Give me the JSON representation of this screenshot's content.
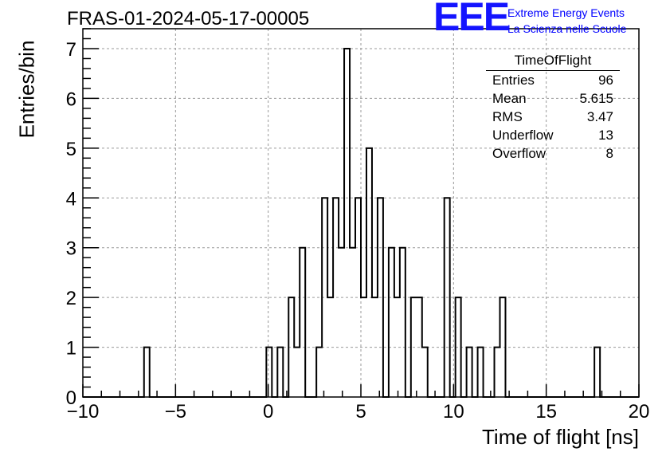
{
  "page_title": "FRAS-01-2024-05-17-00005",
  "logo": {
    "mark": "EEE",
    "line1": "Extreme Energy Events",
    "line2": "La Scienza nelle Scuole",
    "color": "#1414ff"
  },
  "stats": {
    "title": "TimeOfFlight",
    "rows": [
      {
        "label": "Entries",
        "value": "96"
      },
      {
        "label": "Mean",
        "value": "5.615"
      },
      {
        "label": "RMS",
        "value": "3.47"
      },
      {
        "label": "Underflow",
        "value": "13"
      },
      {
        "label": "Overflow",
        "value": "8"
      }
    ]
  },
  "chart_data": {
    "type": "bar",
    "histogram": true,
    "title": "",
    "xlabel": "Time of flight [ns]",
    "ylabel": "Entries/bin",
    "xlim": [
      -10,
      20
    ],
    "ylim": [
      0,
      7.4
    ],
    "bin_width": 0.3,
    "grid": true,
    "line_color": "#000000",
    "x_ticks": [
      -10,
      -5,
      0,
      5,
      10,
      15,
      20
    ],
    "x_tick_labels": [
      "−10",
      "−5",
      "0",
      "5",
      "10",
      "15",
      "20"
    ],
    "y_ticks": [
      0,
      1,
      2,
      3,
      4,
      5,
      6,
      7
    ],
    "y_tick_labels": [
      "0",
      "1",
      "2",
      "3",
      "4",
      "5",
      "6",
      "7"
    ],
    "bins": [
      {
        "x": -6.7,
        "count": 1
      },
      {
        "x": -0.1,
        "count": 1
      },
      {
        "x": 0.5,
        "count": 1
      },
      {
        "x": 1.1,
        "count": 2
      },
      {
        "x": 1.4,
        "count": 1
      },
      {
        "x": 1.7,
        "count": 3
      },
      {
        "x": 2.6,
        "count": 1
      },
      {
        "x": 2.9,
        "count": 4
      },
      {
        "x": 3.2,
        "count": 2
      },
      {
        "x": 3.5,
        "count": 4
      },
      {
        "x": 3.8,
        "count": 3
      },
      {
        "x": 4.1,
        "count": 7
      },
      {
        "x": 4.4,
        "count": 3
      },
      {
        "x": 4.7,
        "count": 4
      },
      {
        "x": 5.0,
        "count": 2
      },
      {
        "x": 5.3,
        "count": 5
      },
      {
        "x": 5.6,
        "count": 2
      },
      {
        "x": 5.9,
        "count": 4
      },
      {
        "x": 6.5,
        "count": 3
      },
      {
        "x": 6.8,
        "count": 2
      },
      {
        "x": 7.1,
        "count": 3
      },
      {
        "x": 7.7,
        "count": 2
      },
      {
        "x": 8.0,
        "count": 2
      },
      {
        "x": 8.3,
        "count": 1
      },
      {
        "x": 9.5,
        "count": 4
      },
      {
        "x": 10.1,
        "count": 2
      },
      {
        "x": 10.7,
        "count": 1
      },
      {
        "x": 11.3,
        "count": 1
      },
      {
        "x": 12.2,
        "count": 1
      },
      {
        "x": 12.5,
        "count": 2
      },
      {
        "x": 17.6,
        "count": 1
      }
    ]
  }
}
